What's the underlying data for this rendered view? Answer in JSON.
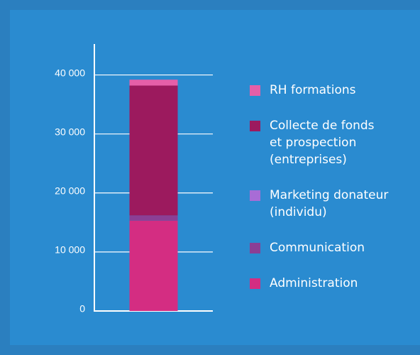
{
  "chart_data": {
    "type": "bar",
    "stacked": true,
    "categories": [
      null
    ],
    "series": [
      {
        "name": "Administration",
        "color": "#d42d82",
        "values": [
          15300
        ]
      },
      {
        "name": "Communication",
        "color": "#8b3f95",
        "values": [
          900
        ]
      },
      {
        "name": "Marketing donateur (individu)",
        "color": "#a86cd6",
        "values": [
          0
        ]
      },
      {
        "name": "Collecte de fonds et prospection (entreprises)",
        "color": "#9c1a5e",
        "values": [
          22000
        ]
      },
      {
        "name": "RH formations",
        "color": "#e55fa8",
        "values": [
          1000
        ]
      }
    ],
    "ylim": [
      0,
      45000
    ],
    "yticks": [
      0,
      {
        "value": 10000,
        "label": "10 000"
      },
      {
        "value": 20000,
        "label": "20 000"
      },
      {
        "value": 30000,
        "label": "30 000"
      },
      {
        "value": 40000,
        "label": "40 000"
      }
    ],
    "grid": true,
    "legend": "right"
  }
}
